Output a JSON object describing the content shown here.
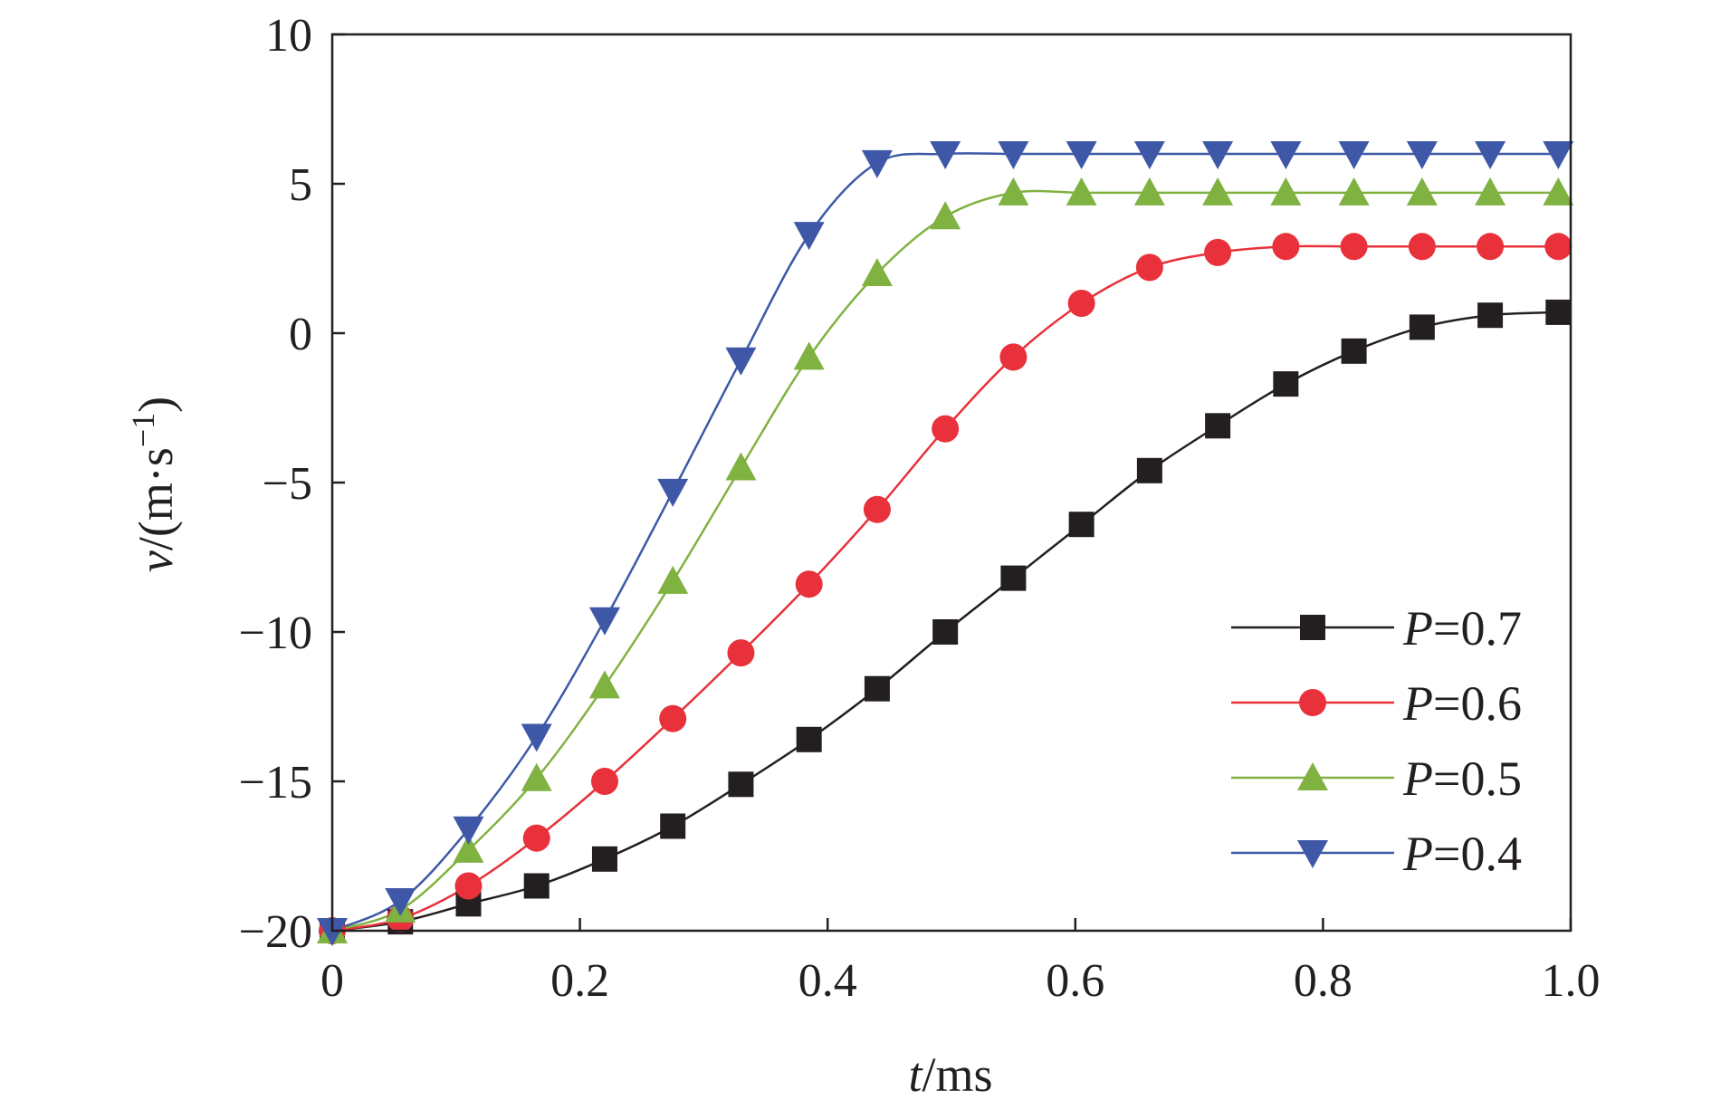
{
  "chart_data": {
    "type": "line",
    "title": "",
    "xlabel": {
      "var": "t",
      "unit": "/ms"
    },
    "ylabel": {
      "var": "v",
      "unit_prefix": "/(m·s",
      "unit_exp": "−1",
      "unit_suffix": ")"
    },
    "xlim": [
      0,
      1.0
    ],
    "ylim": [
      -20,
      10
    ],
    "xticks": [
      0,
      0.2,
      0.4,
      0.6,
      0.8,
      1.0
    ],
    "xtick_labels": [
      "0",
      "0.2",
      "0.4",
      "0.6",
      "0.8",
      "1.0"
    ],
    "yticks": [
      -20,
      -15,
      -10,
      -5,
      0,
      5,
      10
    ],
    "ytick_labels": [
      "−20",
      "−15",
      "−10",
      "−5",
      "0",
      "5",
      "10"
    ],
    "grid": false,
    "legend_position": "bottom-right",
    "marker_x": [
      0,
      0.055,
      0.11,
      0.165,
      0.22,
      0.275,
      0.33,
      0.385,
      0.44,
      0.495,
      0.55,
      0.605,
      0.66,
      0.715,
      0.77,
      0.825,
      0.88,
      0.935,
      0.99
    ],
    "series": [
      {
        "name": "P=0.7",
        "name_var": "P",
        "name_rest": "=0.7",
        "color": "#231f20",
        "marker": "square",
        "values": [
          -20,
          -19.7,
          -19.1,
          -18.5,
          -17.6,
          -16.5,
          -15.1,
          -13.6,
          -11.9,
          -10.0,
          -8.2,
          -6.4,
          -4.6,
          -3.1,
          -1.7,
          -0.6,
          0.2,
          0.6,
          0.7
        ]
      },
      {
        "name": "P=0.6",
        "name_var": "P",
        "name_rest": "=0.6",
        "color": "#e8313a",
        "marker": "circle",
        "values": [
          -20,
          -19.6,
          -18.5,
          -16.9,
          -15.0,
          -12.9,
          -10.7,
          -8.4,
          -5.9,
          -3.2,
          -0.8,
          1.0,
          2.2,
          2.7,
          2.9,
          2.9,
          2.9,
          2.9,
          2.9
        ]
      },
      {
        "name": "P=0.5",
        "name_var": "P",
        "name_rest": "=0.5",
        "color": "#7fb241",
        "marker": "triangle-up",
        "values": [
          -20,
          -19.3,
          -17.3,
          -14.9,
          -11.8,
          -8.3,
          -4.5,
          -0.8,
          2.0,
          3.9,
          4.7,
          4.7,
          4.7,
          4.7,
          4.7,
          4.7,
          4.7,
          4.7,
          4.7
        ]
      },
      {
        "name": "P=0.4",
        "name_var": "P",
        "name_rest": "=0.4",
        "color": "#3e58a7",
        "marker": "triangle-down",
        "values": [
          -20,
          -19.0,
          -16.6,
          -13.5,
          -9.6,
          -5.3,
          -0.9,
          3.3,
          5.7,
          6.0,
          6.0,
          6.0,
          6.0,
          6.0,
          6.0,
          6.0,
          6.0,
          6.0,
          6.0
        ]
      }
    ]
  }
}
